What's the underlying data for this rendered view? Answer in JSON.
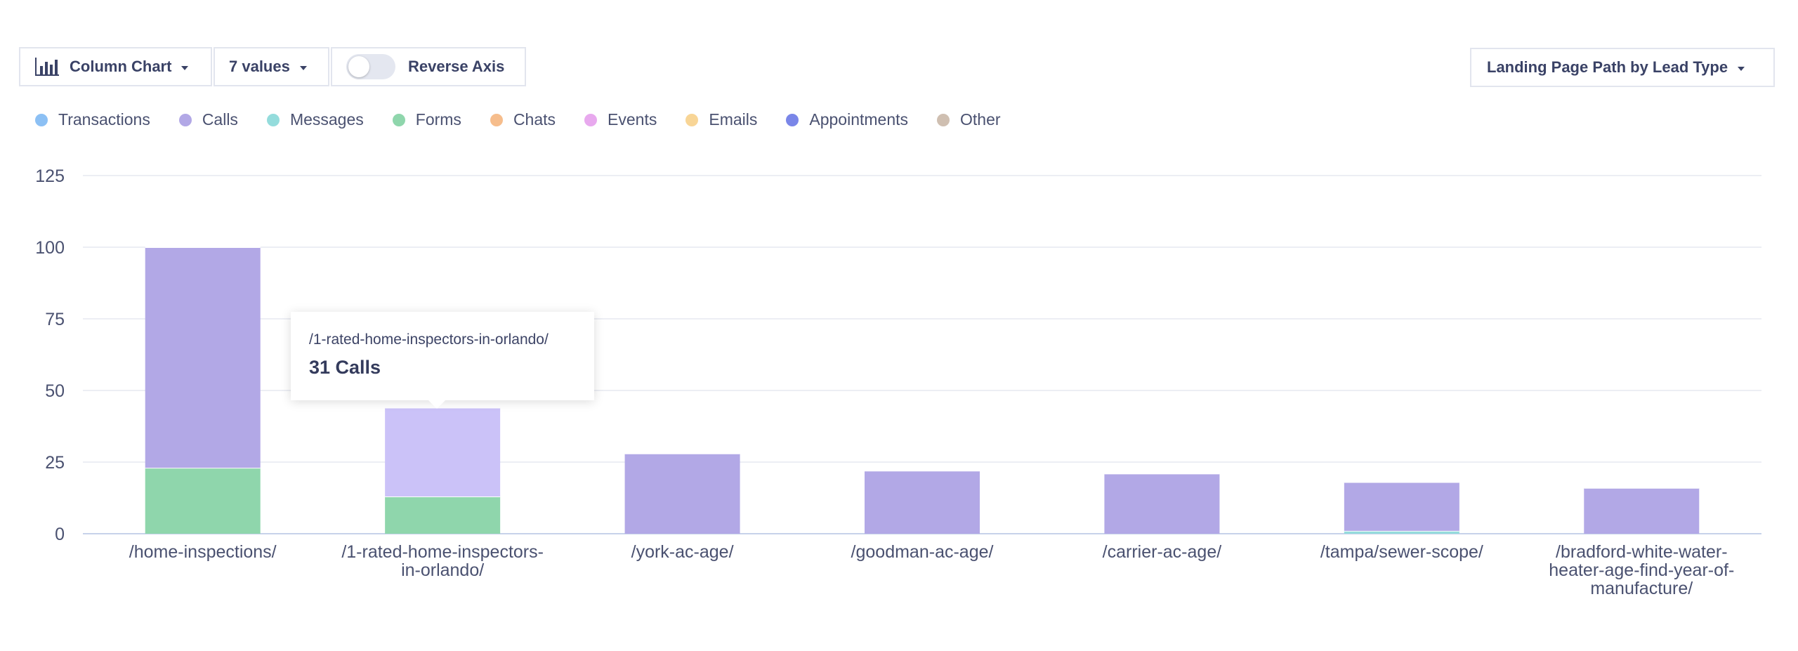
{
  "toolbar": {
    "chart_type_label": "Column Chart",
    "values_label": "7 values",
    "reverse_axis_label": "Reverse Axis",
    "reverse_axis_on": false,
    "grouping_label": "Landing Page Path by Lead Type"
  },
  "legend": [
    {
      "label": "Transactions",
      "color": "#8cc0f4"
    },
    {
      "label": "Calls",
      "color": "#b2a8e6"
    },
    {
      "label": "Messages",
      "color": "#94dcdc"
    },
    {
      "label": "Forms",
      "color": "#8fd6ac"
    },
    {
      "label": "Chats",
      "color": "#f6bd8c"
    },
    {
      "label": "Events",
      "color": "#e8a9ee"
    },
    {
      "label": "Emails",
      "color": "#f8d596"
    },
    {
      "label": "Appointments",
      "color": "#7a86e8"
    },
    {
      "label": "Other",
      "color": "#cfbfb1"
    }
  ],
  "tooltip": {
    "title": "/1-rated-home-inspectors-in-orlando/",
    "value": "31 Calls"
  },
  "chart_data": {
    "type": "bar",
    "stacked": true,
    "categories": [
      [
        "/home-inspections/"
      ],
      [
        "/1-rated-home-inspectors-",
        "in-orlando/"
      ],
      [
        "/york-ac-age/"
      ],
      [
        "/goodman-ac-age/"
      ],
      [
        "/carrier-ac-age/"
      ],
      [
        "/tampa/sewer-scope/"
      ],
      [
        "/bradford-white-water-",
        "heater-age-find-year-of-",
        "manufacture/"
      ]
    ],
    "series": [
      {
        "name": "Forms",
        "color": "#8fd6ac",
        "values": [
          23,
          13,
          0,
          0,
          0,
          0,
          0
        ]
      },
      {
        "name": "Messages",
        "color": "#94dcdc",
        "values": [
          0,
          0,
          0,
          0,
          0,
          1,
          0
        ]
      },
      {
        "name": "Calls",
        "color": "#b2a8e6",
        "values": [
          77,
          31,
          28,
          22,
          21,
          17,
          16
        ]
      }
    ],
    "highlight": {
      "category_index": 1,
      "series": "Calls",
      "color": "#cbc2f8"
    },
    "ylim": [
      0,
      125
    ],
    "yticks": [
      0,
      25,
      50,
      75,
      100,
      125
    ],
    "grid": true
  }
}
